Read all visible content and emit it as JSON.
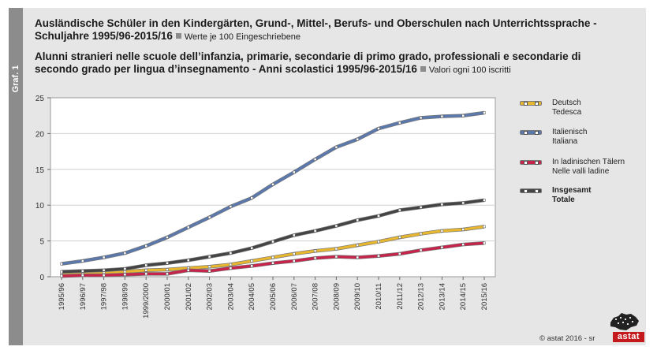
{
  "side_label": "Graf. 1",
  "title_de_line1": "Ausländische Schüler in den Kindergärten, Grund-, Mittel-, Berufs- und Oberschulen nach Unterrichtssprache -",
  "title_de_line2": "Schuljahre 1995/96-2015/16",
  "subtitle_de": "Werte je 100 Eingeschriebene",
  "title_it_line1": "Alunni stranieri nelle scuole dell’infanzia, primarie, secondarie di primo grado, professionali e secondarie di",
  "title_it_line2": "secondo grado per lingua d’insegnamento - Anni scolastici 1995/96-2015/16",
  "subtitle_it": "Valori ogni 100 iscritti",
  "footer": "© astat 2016 - sr",
  "logo_text": "astat",
  "chart_data": {
    "type": "line",
    "title": "Ausländische Schüler in den Kindergärten, Grund-, Mittel-, Berufs- und Oberschulen nach Unterrichtssprache - Schuljahre 1995/96-2015/16",
    "xlabel": "",
    "ylabel": "",
    "ylim": [
      0,
      25
    ],
    "yticks": [
      0,
      5,
      10,
      15,
      20,
      25
    ],
    "grid": true,
    "legend_position": "right",
    "categories": [
      "1995/96",
      "1996/97",
      "1997/98",
      "1998/99",
      "1999/2000",
      "2000/01",
      "2001/02",
      "2002/03",
      "2003/04",
      "2004/05",
      "2005/06",
      "2006/07",
      "2007/08",
      "2008/09",
      "2009/10",
      "2010/11",
      "2011/12",
      "2012/13",
      "2013/14",
      "2014/15",
      "2015/16"
    ],
    "series": [
      {
        "name": "Deutsch",
        "name2": "Tedesca",
        "bold": false,
        "color": "#e8b730",
        "values": [
          0.4,
          0.5,
          0.6,
          0.7,
          0.9,
          1.0,
          1.2,
          1.4,
          1.7,
          2.2,
          2.7,
          3.2,
          3.6,
          3.9,
          4.4,
          4.9,
          5.5,
          6.0,
          6.4,
          6.6,
          7.0
        ]
      },
      {
        "name": "Italienisch",
        "name2": "Italiana",
        "bold": false,
        "color": "#5b78ad",
        "values": [
          1.8,
          2.2,
          2.7,
          3.3,
          4.3,
          5.5,
          6.9,
          8.3,
          9.8,
          11.0,
          12.9,
          14.6,
          16.4,
          18.1,
          19.2,
          20.7,
          21.5,
          22.2,
          22.4,
          22.5,
          22.9
        ]
      },
      {
        "name": "In ladinischen Tälern",
        "name2": "Nelle valli ladine",
        "bold": false,
        "color": "#c6244b",
        "values": [
          0.1,
          0.2,
          0.2,
          0.3,
          0.4,
          0.4,
          0.9,
          0.8,
          1.2,
          1.5,
          1.9,
          2.2,
          2.6,
          2.8,
          2.7,
          2.9,
          3.2,
          3.7,
          4.1,
          4.5,
          4.7
        ]
      },
      {
        "name": "Insgesamt",
        "name2": "Totale",
        "bold": true,
        "color": "#444444",
        "values": [
          0.7,
          0.8,
          0.9,
          1.1,
          1.6,
          1.9,
          2.3,
          2.8,
          3.3,
          4.0,
          4.9,
          5.8,
          6.4,
          7.1,
          7.9,
          8.5,
          9.3,
          9.7,
          10.1,
          10.3,
          10.7
        ]
      }
    ]
  }
}
